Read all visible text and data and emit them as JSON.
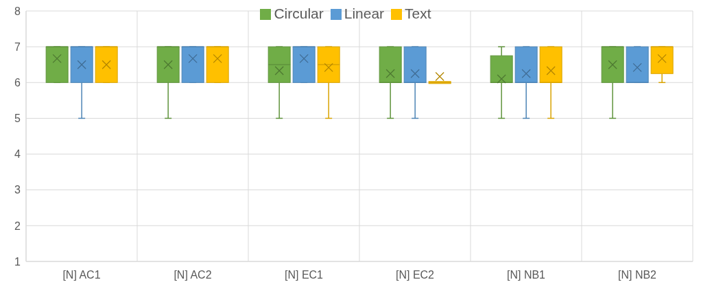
{
  "chart_data": {
    "type": "box",
    "categories": [
      "[N] AC1",
      "[N] AC2",
      "[N] EC1",
      "[N] EC2",
      "[N] NB1",
      "[N] NB2"
    ],
    "series": [
      {
        "name": "Circular",
        "color": "#70ad47",
        "boxes": [
          {
            "low": 6,
            "q1": 6,
            "median": 7,
            "q3": 7,
            "high": 7,
            "mean": 6.67
          },
          {
            "low": 5,
            "q1": 6,
            "median": 7,
            "q3": 7,
            "high": 7,
            "mean": 6.5
          },
          {
            "low": 5,
            "q1": 6,
            "median": 6.5,
            "q3": 7,
            "high": 7,
            "mean": 6.33
          },
          {
            "low": 5,
            "q1": 6,
            "median": 6,
            "q3": 7,
            "high": 7,
            "mean": 6.25
          },
          {
            "low": 5,
            "q1": 6,
            "median": 6,
            "q3": 6.75,
            "high": 7,
            "mean": 6.1
          },
          {
            "low": 5,
            "q1": 6,
            "median": 7,
            "q3": 7,
            "high": 7,
            "mean": 6.5
          }
        ]
      },
      {
        "name": "Linear",
        "color": "#5b9bd5",
        "boxes": [
          {
            "low": 5,
            "q1": 6,
            "median": 7,
            "q3": 7,
            "high": 7,
            "mean": 6.5
          },
          {
            "low": 6,
            "q1": 6,
            "median": 7,
            "q3": 7,
            "high": 7,
            "mean": 6.67
          },
          {
            "low": 6,
            "q1": 6,
            "median": 7,
            "q3": 7,
            "high": 7,
            "mean": 6.67
          },
          {
            "low": 5,
            "q1": 6,
            "median": 6,
            "q3": 7,
            "high": 7,
            "mean": 6.25
          },
          {
            "low": 5,
            "q1": 6,
            "median": 6,
            "q3": 7,
            "high": 7,
            "mean": 6.25
          },
          {
            "low": 6,
            "q1": 6,
            "median": 6,
            "q3": 7,
            "high": 7,
            "mean": 6.42
          }
        ]
      },
      {
        "name": "Text",
        "color": "#ffc000",
        "boxes": [
          {
            "low": 6,
            "q1": 6,
            "median": 7,
            "q3": 7,
            "high": 7,
            "mean": 6.5
          },
          {
            "low": 6,
            "q1": 6,
            "median": 7,
            "q3": 7,
            "high": 7,
            "mean": 6.67
          },
          {
            "low": 5,
            "q1": 6,
            "median": 6.5,
            "q3": 7,
            "high": 7,
            "mean": 6.42
          },
          {
            "low": 6,
            "q1": 6,
            "median": 6,
            "q3": 6,
            "high": 6,
            "mean": 6.17
          },
          {
            "low": 5,
            "q1": 6,
            "median": 6,
            "q3": 7,
            "high": 7,
            "mean": 6.33
          },
          {
            "low": 6,
            "q1": 6.25,
            "median": 7,
            "q3": 7,
            "high": 7,
            "mean": 6.67
          }
        ]
      }
    ],
    "ylim": [
      1,
      8
    ],
    "yticks": [
      1,
      2,
      3,
      4,
      5,
      6,
      7,
      8
    ],
    "grid": true,
    "legend": "top"
  }
}
